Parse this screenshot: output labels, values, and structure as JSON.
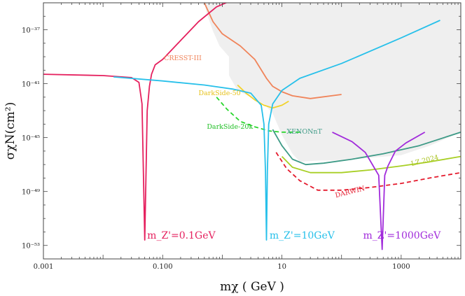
{
  "chart_data": {
    "type": "line",
    "xscale": "log",
    "yscale": "log",
    "xlim": [
      0.001,
      10000
    ],
    "ylim": [
      1e-54,
      1e-35
    ],
    "xlabel": "mχ ( GeV )",
    "ylabel": "σχN(cm²)",
    "x_ticks": [
      {
        "value": 0.001,
        "label": "0.001"
      },
      {
        "value": 0.1,
        "label": "0.100"
      },
      {
        "value": 10,
        "label": "10"
      },
      {
        "value": 1000,
        "label": "1000"
      }
    ],
    "y_ticks": [
      {
        "exp": -37,
        "label": "10⁻³⁷"
      },
      {
        "exp": -41,
        "label": "10⁻⁴¹"
      },
      {
        "exp": -45,
        "label": "10⁻⁴⁵"
      },
      {
        "exp": -49,
        "label": "10⁻⁴⁹"
      },
      {
        "exp": -53,
        "label": "10⁻⁵³"
      }
    ],
    "excluded_region": {
      "fill": "#efefef",
      "points": [
        [
          0.5,
          -35
        ],
        [
          1.0,
          -35
        ],
        [
          10000,
          -35
        ],
        [
          10000,
          -44.6
        ],
        [
          3000,
          -45.6
        ],
        [
          1000,
          -46.3
        ],
        [
          300,
          -46.5
        ],
        [
          100,
          -46.7
        ],
        [
          40,
          -46.7
        ],
        [
          20,
          -46.8
        ],
        [
          15,
          -46.2
        ],
        [
          10,
          -44.8
        ],
        [
          7,
          -43.2
        ],
        [
          5,
          -42.5
        ],
        [
          3,
          -42
        ],
        [
          1.8,
          -41.5
        ],
        [
          1.3,
          -40.4
        ],
        [
          1.3,
          -39
        ],
        [
          0.9,
          -38.2
        ],
        [
          0.7,
          -37.1
        ],
        [
          0.55,
          -35.8
        ]
      ]
    },
    "series": [
      {
        "name": "CRESST-III",
        "color": "#f0845a",
        "dash": false,
        "label": "CRESST-III",
        "points": [
          [
            0.5,
            -35
          ],
          [
            0.7,
            -36.4
          ],
          [
            1.0,
            -37.3
          ],
          [
            2.0,
            -38.2
          ],
          [
            3.5,
            -39.2
          ],
          [
            5.5,
            -40.6
          ],
          [
            7,
            -41.2
          ],
          [
            10,
            -41.6
          ],
          [
            15,
            -41.9
          ],
          [
            30,
            -42.1
          ],
          [
            100,
            -41.8
          ]
        ]
      },
      {
        "name": "DarkSide-50",
        "color": "#f1d22a",
        "dash": false,
        "label": "DarkSide-50",
        "points": [
          [
            1.8,
            -41.1
          ],
          [
            2.5,
            -41.7
          ],
          [
            3.5,
            -42.2
          ],
          [
            5,
            -42.6
          ],
          [
            7,
            -42.8
          ],
          [
            10,
            -42.6
          ],
          [
            13,
            -42.3
          ]
        ]
      },
      {
        "name": "DarkSide-20k",
        "color": "#28d62c",
        "dash": true,
        "label": "DarkSide-20k",
        "points": [
          [
            0.8,
            -42
          ],
          [
            1.2,
            -42.9
          ],
          [
            2,
            -43.8
          ],
          [
            3.5,
            -44.2
          ],
          [
            6,
            -44.5
          ],
          [
            10,
            -44.6
          ],
          [
            20,
            -44.6
          ]
        ]
      },
      {
        "name": "XENONnT",
        "color": "#3d9a86",
        "dash": false,
        "label": "XENONnT",
        "points": [
          [
            7,
            -44.4
          ],
          [
            10,
            -45.6
          ],
          [
            15,
            -46.6
          ],
          [
            25,
            -47
          ],
          [
            50,
            -46.9
          ],
          [
            150,
            -46.6
          ],
          [
            500,
            -46.2
          ],
          [
            2000,
            -45.6
          ],
          [
            10000,
            -44.6
          ]
        ]
      },
      {
        "name": "LZ 2024",
        "color": "#a8cf25",
        "dash": false,
        "label": "LZ 2024",
        "points": [
          [
            10,
            -46.4
          ],
          [
            15,
            -47.2
          ],
          [
            30,
            -47.6
          ],
          [
            100,
            -47.6
          ],
          [
            300,
            -47.4
          ],
          [
            1000,
            -47.1
          ],
          [
            3000,
            -46.8
          ],
          [
            10000,
            -46.4
          ]
        ]
      },
      {
        "name": "DARWIN",
        "color": "#e41a2d",
        "dash": true,
        "label": "DARWIN",
        "points": [
          [
            8,
            -46.1
          ],
          [
            12,
            -47.3
          ],
          [
            20,
            -48.2
          ],
          [
            40,
            -48.9
          ],
          [
            100,
            -48.9
          ],
          [
            300,
            -48.7
          ],
          [
            1000,
            -48.4
          ],
          [
            3000,
            -48
          ],
          [
            10000,
            -47.6
          ]
        ]
      },
      {
        "name": "m_Z'=0.1GeV",
        "color": "#e5205e",
        "dash": false,
        "label": "m_Z'=0.1GeV",
        "points": [
          [
            0.001,
            -40.3
          ],
          [
            0.01,
            -40.4
          ],
          [
            0.03,
            -40.55
          ],
          [
            0.04,
            -40.9
          ],
          [
            0.045,
            -42.5
          ],
          [
            0.05,
            -52.6
          ],
          [
            0.055,
            -43
          ],
          [
            0.06,
            -41.2
          ],
          [
            0.065,
            -40.3
          ],
          [
            0.075,
            -39.6
          ],
          [
            0.1,
            -39.2
          ],
          [
            0.2,
            -37.8
          ],
          [
            0.4,
            -36.4
          ],
          [
            0.8,
            -35.3
          ],
          [
            1.3,
            -34.9
          ]
        ]
      },
      {
        "name": "m_Z'=10GeV",
        "color": "#27c0ea",
        "dash": false,
        "label": "m_Z'=10GeV",
        "points": [
          [
            0.015,
            -40.5
          ],
          [
            0.1,
            -40.8
          ],
          [
            0.5,
            -41.1
          ],
          [
            1.5,
            -41.4
          ],
          [
            3,
            -41.7
          ],
          [
            4.5,
            -42.6
          ],
          [
            5,
            -44
          ],
          [
            5.3,
            -47.5
          ],
          [
            5.5,
            -52.6
          ],
          [
            5.7,
            -47.5
          ],
          [
            6,
            -44
          ],
          [
            7,
            -42.5
          ],
          [
            10,
            -41.5
          ],
          [
            20,
            -40.6
          ],
          [
            100,
            -39.5
          ],
          [
            1000,
            -37.6
          ],
          [
            4500,
            -36.3
          ]
        ]
      },
      {
        "name": "m_Z'=1000GeV",
        "color": "#a12bdb",
        "dash": false,
        "label": "m_Z'=1000GeV",
        "points": [
          [
            70,
            -44.6
          ],
          [
            150,
            -45.3
          ],
          [
            250,
            -46.1
          ],
          [
            350,
            -47.2
          ],
          [
            420,
            -47.8
          ],
          [
            480,
            -53.3
          ],
          [
            530,
            -47.8
          ],
          [
            600,
            -47.1
          ],
          [
            800,
            -46
          ],
          [
            1200,
            -45.4
          ],
          [
            2500,
            -44.6
          ]
        ]
      }
    ],
    "annotations": [
      {
        "text": "CRESST-III",
        "color": "#f0845a"
      },
      {
        "text": "DarkSide-50",
        "color": "#e6c21c"
      },
      {
        "text": "DarkSide-20k",
        "color": "#1fbf24"
      },
      {
        "text": "XENONnT",
        "color": "#3d9a86"
      },
      {
        "text": "LZ 2024",
        "color": "#a8c21d"
      },
      {
        "text": "DARWIN",
        "color": "#e41a2d"
      },
      {
        "text": "m_Z'=0.1GeV",
        "color": "#e5205e"
      },
      {
        "text": "m_Z'=10GeV",
        "color": "#27c0ea"
      },
      {
        "text": "m_Z'=1000GeV",
        "color": "#a12bdb"
      }
    ]
  }
}
